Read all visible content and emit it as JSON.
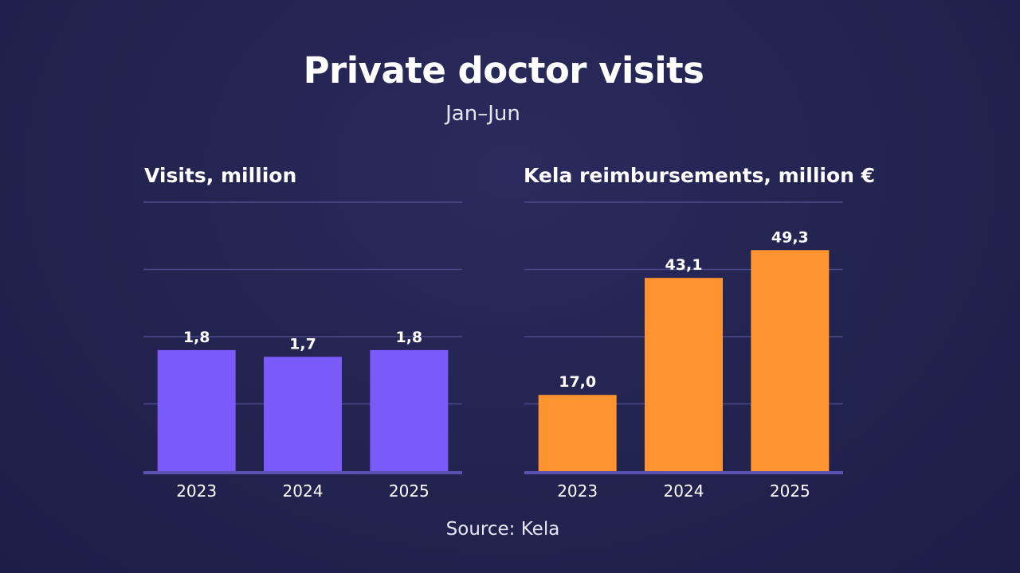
{
  "title": "Private doctor visits",
  "subtitle": "Jan–Jun",
  "source": "Source: Kela",
  "colors": {
    "left_bar": "#7a5af8",
    "right_bar": "#ff9330",
    "grid": "#4a4a8a",
    "axis": "#5a52b0"
  },
  "chart_data": [
    {
      "type": "bar",
      "title": "Visits, million",
      "categories": [
        "2023",
        "2024",
        "2025"
      ],
      "values": [
        1.8,
        1.7,
        1.8
      ],
      "value_labels": [
        "1,8",
        "1,7",
        "1,8"
      ],
      "ylim": [
        0,
        4
      ],
      "grid": true
    },
    {
      "type": "bar",
      "title": "Kela reimbursements, million €",
      "categories": [
        "2023",
        "2024",
        "2025"
      ],
      "values": [
        17.0,
        43.1,
        49.3
      ],
      "value_labels": [
        "17,0",
        "43,1",
        "49,3"
      ],
      "ylim": [
        0,
        60
      ],
      "grid": true
    }
  ]
}
